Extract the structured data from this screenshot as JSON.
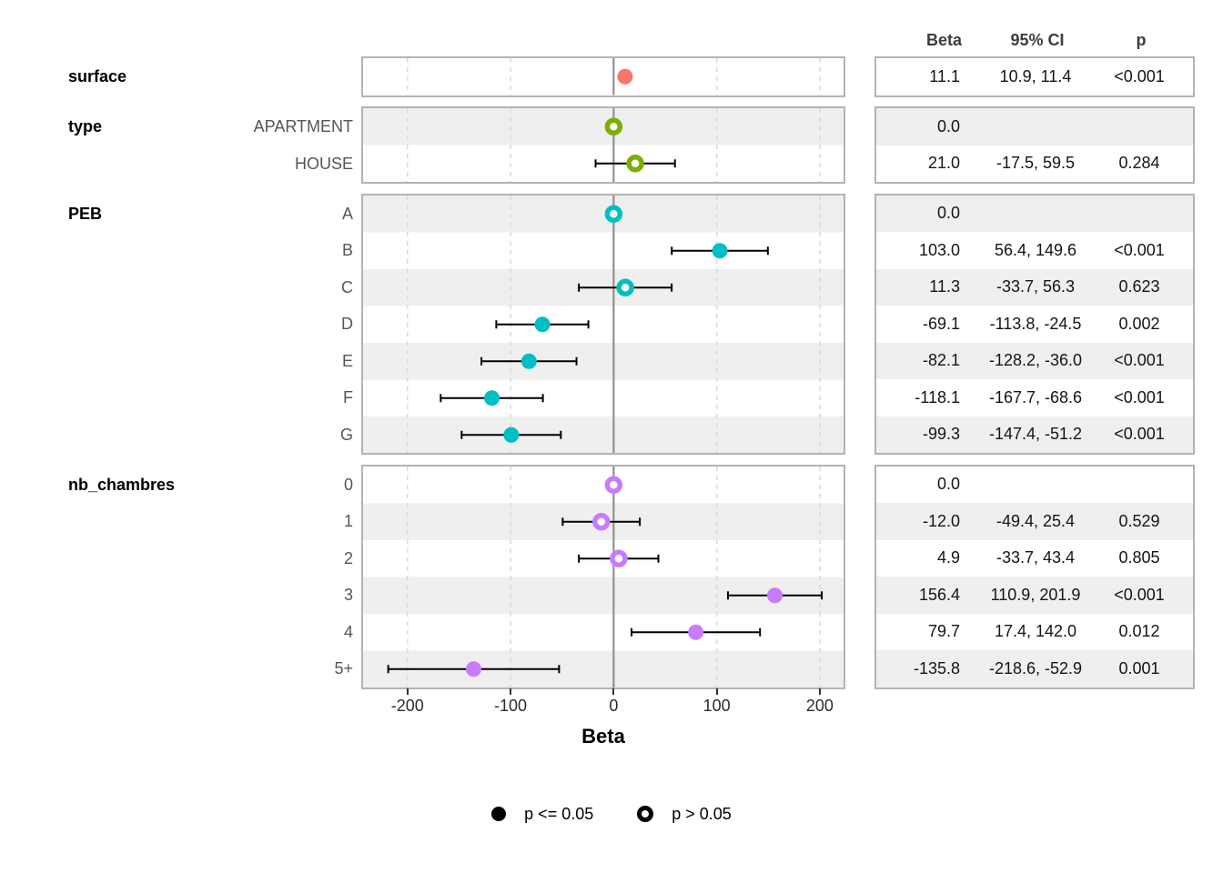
{
  "table": {
    "headers": {
      "beta": "Beta",
      "ci": "95% CI",
      "p": "p"
    }
  },
  "legend": {
    "items": [
      {
        "label": "p <= 0.05",
        "marker": "filled-circle"
      },
      {
        "label": "p > 0.05",
        "marker": "open-circle"
      }
    ]
  },
  "colors": {
    "surface": "#F8766D",
    "type": "#7CAE00",
    "PEB": "#00BFC4",
    "nb_chambres": "#C77CFF",
    "stripe": "#EFEFEF",
    "panel_border": "#B3B3B3",
    "zero_line": "#919191",
    "grid_dashed": "#DBDBDB",
    "ci_line": "#000000",
    "legend_marker": "#000000"
  },
  "chart_data": {
    "type": "scatter",
    "subtype": "forest-plot",
    "xlabel": "Beta",
    "xlim": [
      -243,
      223
    ],
    "x_ticks": [
      -200,
      -100,
      0,
      100,
      200
    ],
    "grid": "dashed-vertical",
    "legend_position": "bottom",
    "groups": [
      {
        "variable": "surface",
        "color": "#F8766D",
        "rows": [
          {
            "level": "",
            "beta": 11.1,
            "ci_low": 10.9,
            "ci_high": 11.4,
            "beta_label": "11.1",
            "ci_label": "10.9, 11.4",
            "p_label": "<0.001",
            "significant": true,
            "reference": false
          }
        ]
      },
      {
        "variable": "type",
        "color": "#7CAE00",
        "rows": [
          {
            "level": "APARTMENT",
            "beta": 0.0,
            "ci_low": null,
            "ci_high": null,
            "beta_label": "0.0",
            "ci_label": "",
            "p_label": "",
            "significant": false,
            "reference": true
          },
          {
            "level": "HOUSE",
            "beta": 21.0,
            "ci_low": -17.5,
            "ci_high": 59.5,
            "beta_label": "21.0",
            "ci_label": "-17.5, 59.5",
            "p_label": "0.284",
            "significant": false,
            "reference": false
          }
        ]
      },
      {
        "variable": "PEB",
        "color": "#00BFC4",
        "rows": [
          {
            "level": "A",
            "beta": 0.0,
            "ci_low": null,
            "ci_high": null,
            "beta_label": "0.0",
            "ci_label": "",
            "p_label": "",
            "significant": false,
            "reference": true
          },
          {
            "level": "B",
            "beta": 103.0,
            "ci_low": 56.4,
            "ci_high": 149.6,
            "beta_label": "103.0",
            "ci_label": "56.4, 149.6",
            "p_label": "<0.001",
            "significant": true,
            "reference": false
          },
          {
            "level": "C",
            "beta": 11.3,
            "ci_low": -33.7,
            "ci_high": 56.3,
            "beta_label": "11.3",
            "ci_label": "-33.7, 56.3",
            "p_label": "0.623",
            "significant": false,
            "reference": false
          },
          {
            "level": "D",
            "beta": -69.1,
            "ci_low": -113.8,
            "ci_high": -24.5,
            "beta_label": "-69.1",
            "ci_label": "-113.8, -24.5",
            "p_label": "0.002",
            "significant": true,
            "reference": false
          },
          {
            "level": "E",
            "beta": -82.1,
            "ci_low": -128.2,
            "ci_high": -36.0,
            "beta_label": "-82.1",
            "ci_label": "-128.2, -36.0",
            "p_label": "<0.001",
            "significant": true,
            "reference": false
          },
          {
            "level": "F",
            "beta": -118.1,
            "ci_low": -167.7,
            "ci_high": -68.6,
            "beta_label": "-118.1",
            "ci_label": "-167.7, -68.6",
            "p_label": "<0.001",
            "significant": true,
            "reference": false
          },
          {
            "level": "G",
            "beta": -99.3,
            "ci_low": -147.4,
            "ci_high": -51.2,
            "beta_label": "-99.3",
            "ci_label": "-147.4, -51.2",
            "p_label": "<0.001",
            "significant": true,
            "reference": false
          }
        ]
      },
      {
        "variable": "nb_chambres",
        "color": "#C77CFF",
        "rows": [
          {
            "level": "0",
            "beta": 0.0,
            "ci_low": null,
            "ci_high": null,
            "beta_label": "0.0",
            "ci_label": "",
            "p_label": "",
            "significant": false,
            "reference": true
          },
          {
            "level": "1",
            "beta": -12.0,
            "ci_low": -49.4,
            "ci_high": 25.4,
            "beta_label": "-12.0",
            "ci_label": "-49.4, 25.4",
            "p_label": "0.529",
            "significant": false,
            "reference": false
          },
          {
            "level": "2",
            "beta": 4.9,
            "ci_low": -33.7,
            "ci_high": 43.4,
            "beta_label": "4.9",
            "ci_label": "-33.7, 43.4",
            "p_label": "0.805",
            "significant": false,
            "reference": false
          },
          {
            "level": "3",
            "beta": 156.4,
            "ci_low": 110.9,
            "ci_high": 201.9,
            "beta_label": "156.4",
            "ci_label": "110.9, 201.9",
            "p_label": "<0.001",
            "significant": true,
            "reference": false
          },
          {
            "level": "4",
            "beta": 79.7,
            "ci_low": 17.4,
            "ci_high": 142.0,
            "beta_label": "79.7",
            "ci_label": "17.4, 142.0",
            "p_label": "0.012",
            "significant": true,
            "reference": false
          },
          {
            "level": "5+",
            "beta": -135.8,
            "ci_low": -218.6,
            "ci_high": -52.9,
            "beta_label": "-135.8",
            "ci_label": "-218.6, -52.9",
            "p_label": "0.001",
            "significant": true,
            "reference": false
          }
        ]
      }
    ]
  }
}
